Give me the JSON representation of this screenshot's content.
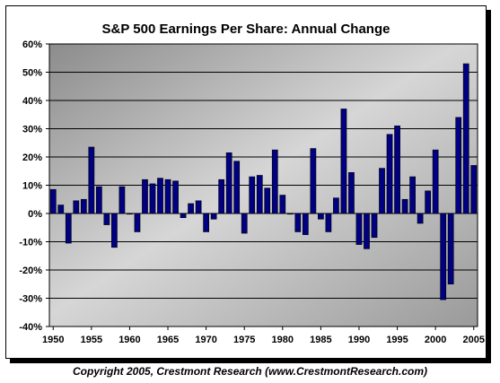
{
  "chart_data": {
    "type": "bar",
    "title": "S&P 500 Earnings Per Share: Annual Change",
    "xlabel": "",
    "ylabel": "",
    "ylim": [
      -40,
      60
    ],
    "yticks": [
      "60%",
      "50%",
      "40%",
      "30%",
      "20%",
      "10%",
      "0%",
      "-10%",
      "-20%",
      "-30%",
      "-40%"
    ],
    "xtick_labels": [
      "1950",
      "1955",
      "1960",
      "1965",
      "1970",
      "1975",
      "1980",
      "1985",
      "1990",
      "1995",
      "2000",
      "2005"
    ],
    "grid": "horizontal",
    "bar_color": "#000080",
    "categories": [
      1950,
      1951,
      1952,
      1953,
      1954,
      1955,
      1956,
      1957,
      1958,
      1959,
      1960,
      1961,
      1962,
      1963,
      1964,
      1965,
      1966,
      1967,
      1968,
      1969,
      1970,
      1971,
      1972,
      1973,
      1974,
      1975,
      1976,
      1977,
      1978,
      1979,
      1980,
      1981,
      1982,
      1983,
      1984,
      1985,
      1986,
      1987,
      1988,
      1989,
      1990,
      1991,
      1992,
      1993,
      1994,
      1995,
      1996,
      1997,
      1998,
      1999,
      2000,
      2001,
      2002,
      2003,
      2004,
      2005
    ],
    "values": [
      8.5,
      3,
      -10.5,
      4.5,
      5,
      23.5,
      9.5,
      -4,
      -12,
      9.5,
      0,
      -6.5,
      12,
      10.5,
      12.5,
      12,
      11.5,
      -1.5,
      3.5,
      4.5,
      -6.5,
      -2,
      12,
      21.5,
      18.5,
      -7,
      13,
      13.5,
      9,
      22.5,
      6.5,
      0,
      -6.5,
      -7.5,
      23,
      -2,
      -6.5,
      5.5,
      37,
      14.5,
      -11,
      -12.5,
      -8.5,
      16,
      28,
      31,
      5,
      13,
      -3.5,
      8,
      22.5,
      -30.5,
      -25,
      34,
      53,
      17
    ]
  },
  "copyright": "Copyright 2005, Crestmont Research (www.CrestmontResearch.com)"
}
